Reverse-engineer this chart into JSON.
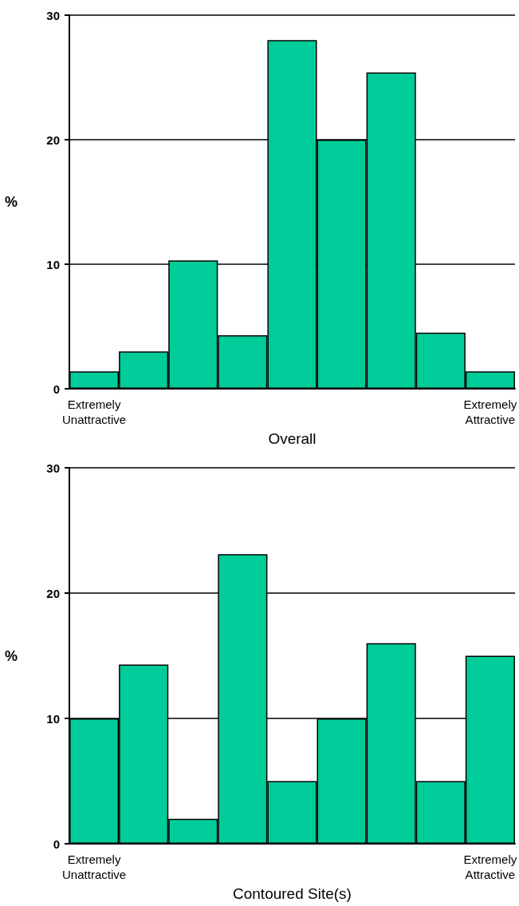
{
  "chart_data": [
    {
      "type": "bar",
      "xlabel": "Overall",
      "ylabel": "%",
      "categories": [
        "Extremely\nUnattractive",
        null,
        null,
        null,
        null,
        null,
        null,
        null,
        "Extremely\nAttractive"
      ],
      "values": [
        1.4,
        3.0,
        10.3,
        4.3,
        28.0,
        20.0,
        25.4,
        4.5,
        1.4
      ],
      "color": "#00cc99",
      "ylim": [
        0,
        30
      ],
      "yticks": [
        0,
        10,
        20,
        30
      ],
      "grid": "y"
    },
    {
      "type": "bar",
      "xlabel": "Contoured Site(s)",
      "ylabel": "%",
      "categories": [
        "Extremely\nUnattractive",
        null,
        null,
        null,
        null,
        null,
        null,
        null,
        "Extremely\nAttractive"
      ],
      "values": [
        10.0,
        14.3,
        2.0,
        23.1,
        5.0,
        10.0,
        16.0,
        5.0,
        15.0
      ],
      "color": "#00cc99",
      "ylim": [
        0,
        30
      ],
      "yticks": [
        0,
        10,
        20,
        30
      ],
      "grid": "y"
    }
  ]
}
